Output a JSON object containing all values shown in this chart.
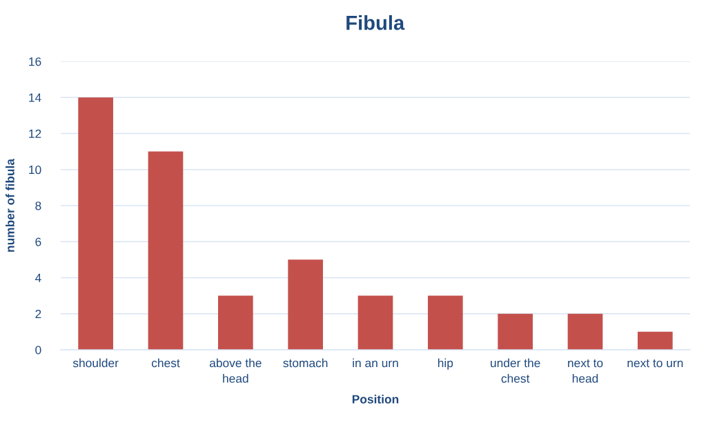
{
  "chart_data": {
    "type": "bar",
    "title": "Fibula",
    "xlabel": "Position",
    "ylabel": "number of fibula",
    "categories": [
      "shoulder",
      "chest",
      "above the\nhead",
      "stomach",
      "in an urn",
      "hip",
      "under the\nchest",
      "next to\nhead",
      "next to urn"
    ],
    "values": [
      14,
      11,
      3,
      5,
      3,
      3,
      2,
      2,
      1
    ],
    "color": "#c4504c",
    "ylim": [
      0,
      16
    ],
    "yticks": [
      0,
      2,
      4,
      6,
      8,
      10,
      12,
      14,
      16
    ],
    "grid": "y",
    "legend": false
  }
}
